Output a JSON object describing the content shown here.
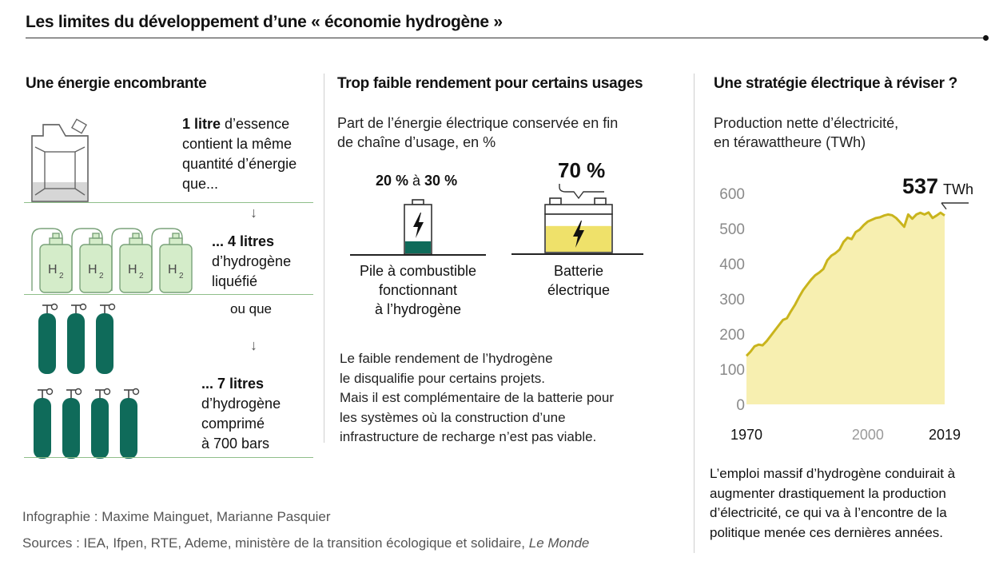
{
  "title": "Les limites du développement d’une « économie hydrogène »",
  "col1": {
    "title": "Une énergie encombrante",
    "block1_bold": "1 litre",
    "block1_rest": " d’essence",
    "block1_lines": [
      "contient la même",
      "quantité d’énergie",
      "que..."
    ],
    "block2_bold": "... 4 litres",
    "block2_lines": [
      "d’hydrogène",
      "liquéfié"
    ],
    "or_text": "ou que",
    "block3_bold": "... 7 litres",
    "block3_lines": [
      "d’hydrogène",
      "comprimé",
      "à 700 bars"
    ],
    "h2_label": "H",
    "h2_sub": "2",
    "arrow": "↓"
  },
  "col2": {
    "title": "Trop faible rendement pour certains usages",
    "subtitle_lines": [
      "Part de l’énergie électrique conservée en fin",
      "de chaîne d’usage, en %"
    ],
    "fuelcell": {
      "value_low": "20 %",
      "value_sep": " à ",
      "value_high": "30 %",
      "label_lines": [
        "Pile à combustible",
        "fonctionnant",
        "à l’hydrogène"
      ],
      "fill_fraction": 0.25
    },
    "battery": {
      "value": "70 %",
      "label_lines": [
        "Batterie",
        "électrique"
      ],
      "fill_fraction": 0.7
    },
    "paragraph_lines": [
      "Le faible rendement de l’hydrogène",
      "le disqualifie pour certains projets.",
      "Mais il est complémentaire de la batterie pour",
      "les systèmes où la construction d’une",
      "infrastructure de recharge n’est pas viable."
    ]
  },
  "col3": {
    "title": "Une stratégie électrique à réviser ?",
    "subtitle_lines": [
      "Production nette d’électricité,",
      "en térawattheure (TWh)"
    ],
    "paragraph_lines": [
      "L’emploi massif d’hydrogène conduirait à",
      "augmenter drastiquement la production",
      "d’électricité, ce qui va à l’encontre de la",
      "politique menée ces dernières années."
    ]
  },
  "credits": {
    "line1": "Infographie : Maxime Mainguet, Marianne Pasquier",
    "line2_prefix": "Sources : IEA, Ifpen, RTE, Ademe, ministère de la transition écologique et solidaire, ",
    "line2_italic": "Le Monde"
  },
  "colors": {
    "green_fill": "#d4ecc9",
    "green_stroke": "#7aa27a",
    "teal": "#0f6b5a",
    "yellow_fill": "#f7efb0",
    "yellow_line": "#c9b41c",
    "battery_yellow": "#efe16a"
  },
  "chart_data": {
    "type": "area",
    "title": "Production nette d’électricité, en térawattheure (TWh)",
    "xlabel": "",
    "ylabel": "",
    "ylim": [
      0,
      600
    ],
    "xlim": [
      1970,
      2019
    ],
    "yticks": [
      0,
      100,
      200,
      300,
      400,
      500,
      600
    ],
    "xticks": [
      1970,
      2000,
      2019
    ],
    "annotation": {
      "value": "537",
      "unit": "TWh",
      "year": 2019
    },
    "grid": false,
    "series": [
      {
        "x": [
          1970,
          1971,
          1972,
          1973,
          1974,
          1975,
          1976,
          1977,
          1978,
          1979,
          1980,
          1981,
          1982,
          1983,
          1984,
          1985,
          1986,
          1987,
          1988,
          1989,
          1990,
          1991,
          1992,
          1993,
          1994,
          1995,
          1996,
          1997,
          1998,
          1999,
          2000,
          2001,
          2002,
          2003,
          2004,
          2005,
          2006,
          2007,
          2008,
          2009,
          2010,
          2011,
          2012,
          2013,
          2014,
          2015,
          2016,
          2017,
          2018,
          2019
        ],
        "values": [
          138,
          150,
          165,
          170,
          168,
          180,
          195,
          210,
          225,
          240,
          245,
          265,
          283,
          305,
          325,
          340,
          355,
          367,
          375,
          385,
          410,
          423,
          430,
          440,
          462,
          474,
          470,
          490,
          497,
          510,
          520,
          525,
          530,
          532,
          537,
          540,
          538,
          530,
          518,
          505,
          540,
          528,
          540,
          545,
          540,
          546,
          530,
          537,
          545,
          537
        ]
      }
    ]
  }
}
